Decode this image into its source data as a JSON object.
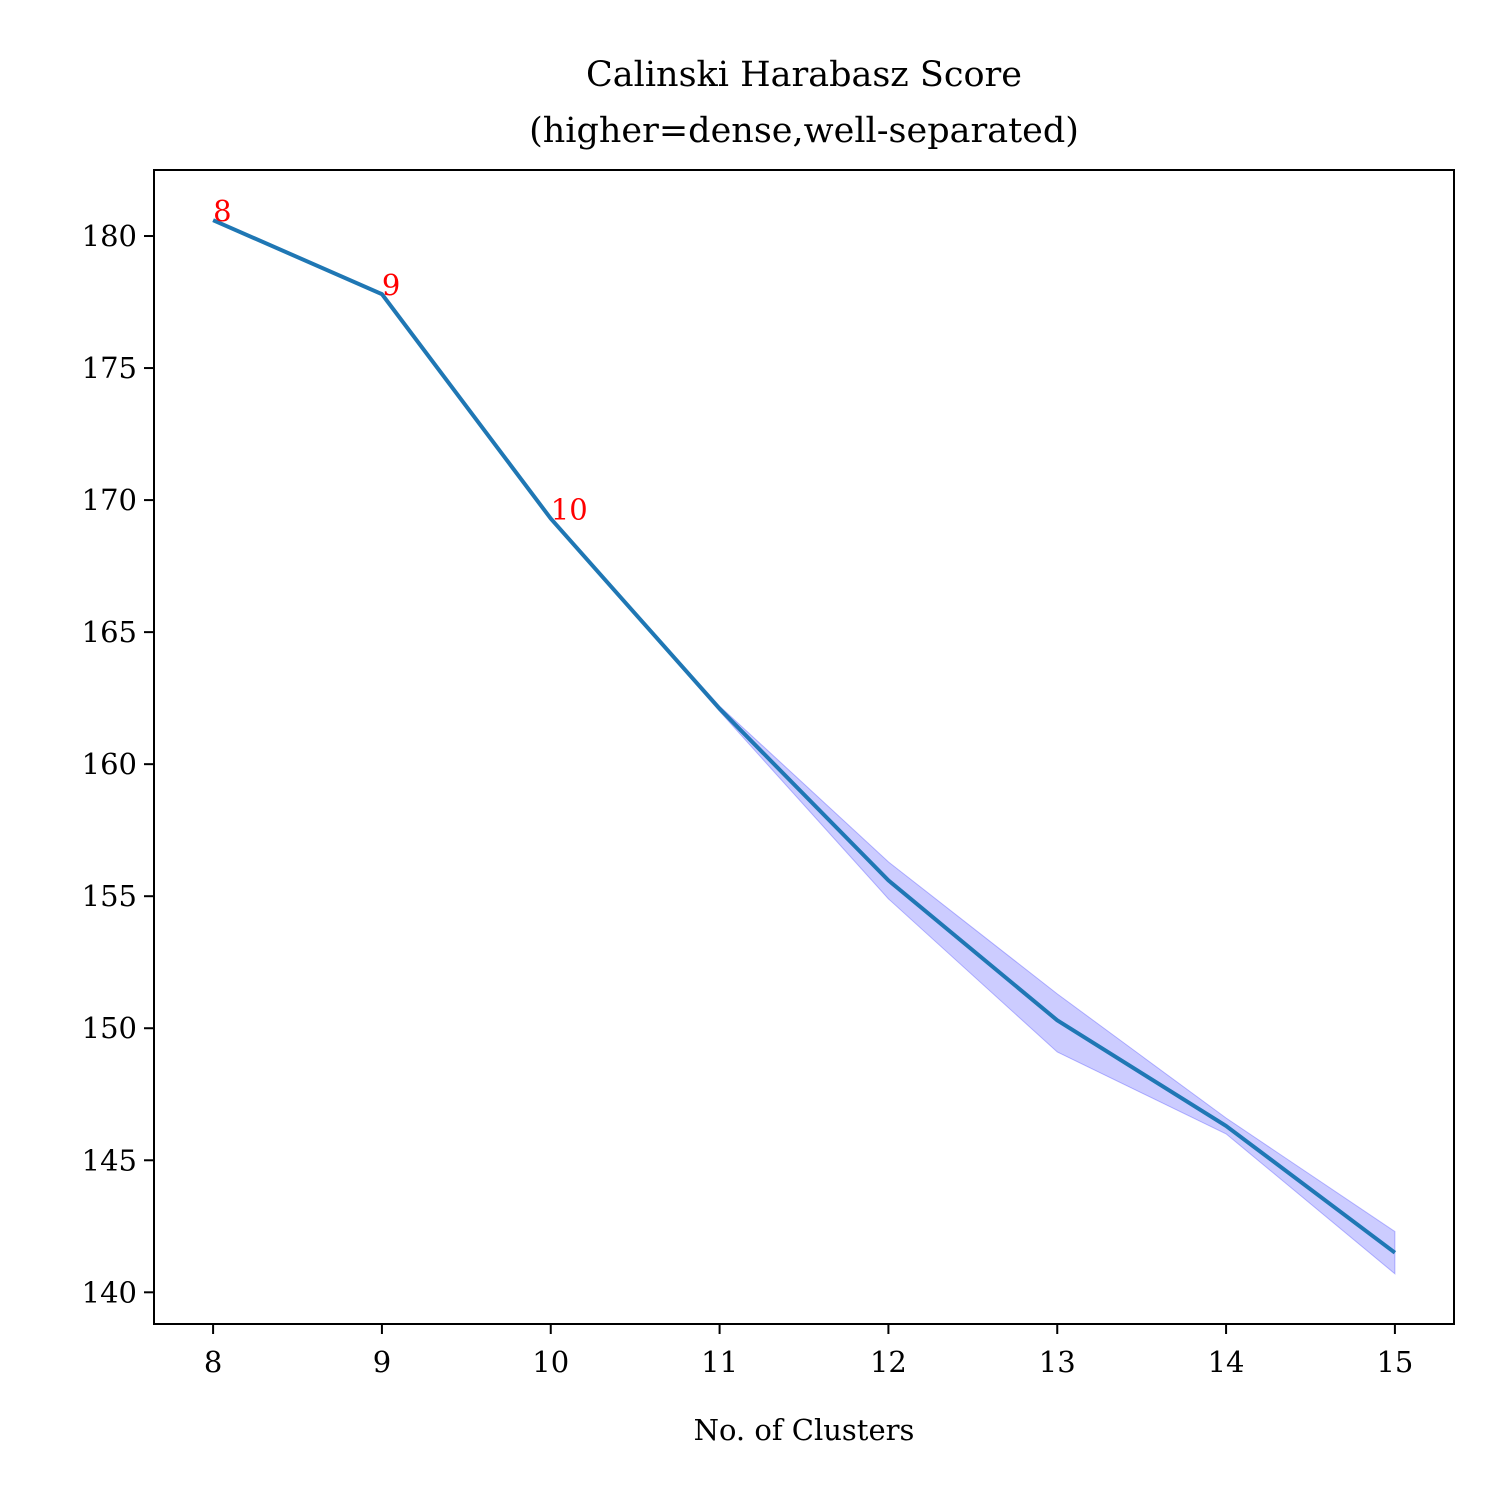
{
  "chart_data": {
    "type": "line",
    "title": "Calinski Harabasz Score",
    "subtitle": "(higher=dense,well-separated)",
    "xlabel": "No. of Clusters",
    "ylabel": "",
    "x": [
      8,
      9,
      10,
      11,
      12,
      13,
      14,
      15
    ],
    "series": [
      {
        "values": [
          180.6,
          177.8,
          169.3,
          162.1,
          155.6,
          150.3,
          146.3,
          141.5
        ],
        "band_lower": [
          180.6,
          177.8,
          169.3,
          162.0,
          154.9,
          149.1,
          146.0,
          140.7
        ],
        "band_upper": [
          180.6,
          177.8,
          169.3,
          162.2,
          156.3,
          151.3,
          146.6,
          142.3
        ],
        "color": "#1f77b4",
        "band_color": "#0000ff"
      }
    ],
    "annotations": [
      {
        "text": "8",
        "x": 8,
        "y": 180.6
      },
      {
        "text": "9",
        "x": 9,
        "y": 177.8
      },
      {
        "text": "10",
        "x": 10,
        "y": 169.3
      }
    ],
    "annotation_color": "#ff0000",
    "xlim": [
      7.65,
      15.35
    ],
    "ylim": [
      138.8,
      182.5
    ],
    "xticks": [
      8,
      9,
      10,
      11,
      12,
      13,
      14,
      15
    ],
    "yticks": [
      140,
      145,
      150,
      155,
      160,
      165,
      170,
      175,
      180
    ],
    "grid": false,
    "legend": "none"
  }
}
